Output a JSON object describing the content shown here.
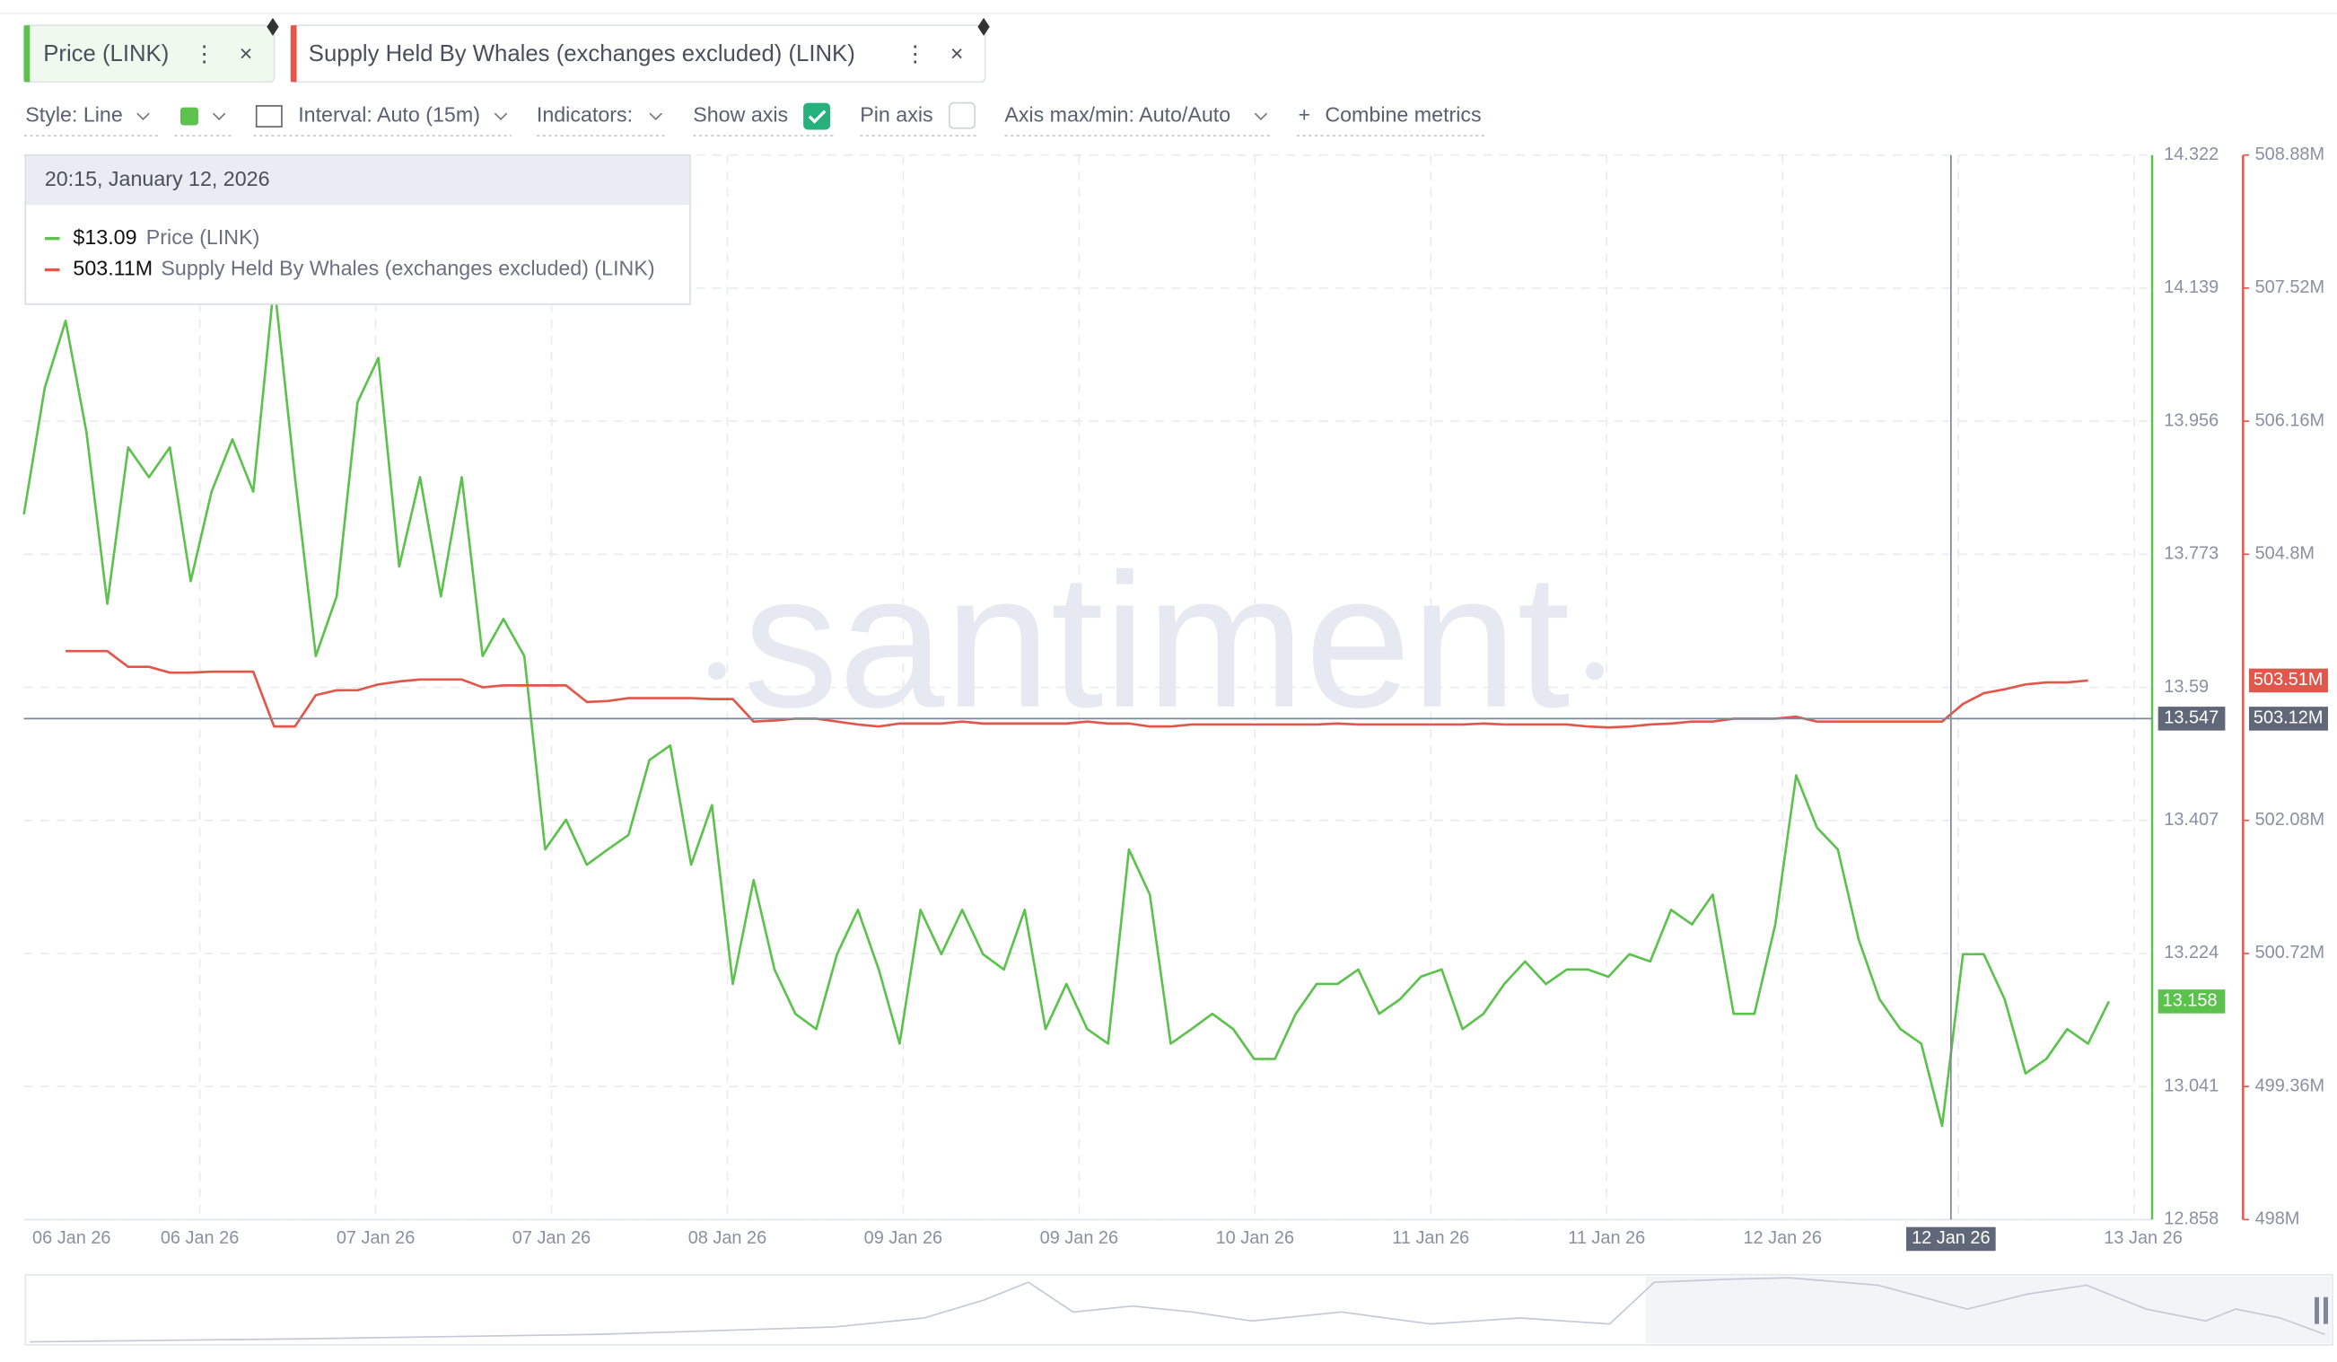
{
  "tabs_note_free": null,
  "toolbar": {
    "style": "Style: Line",
    "interval": "Interval: Auto (15m)",
    "indicators": "Indicators:",
    "show_axis": "Show axis",
    "pin_axis": "Pin axis",
    "axis_range": "Axis max/min: Auto/Auto",
    "combine": "Combine metrics"
  },
  "tooltip": {
    "time": "20:15, January 12, 2026",
    "values": [
      "$13.09",
      "503.11M"
    ]
  },
  "chart_data": {
    "type": "line",
    "watermark": "santiment",
    "grid": true,
    "xtick_labels": [
      "06 Jan 26",
      "06 Jan 26",
      "07 Jan 26",
      "07 Jan 26",
      "08 Jan 26",
      "09 Jan 26",
      "09 Jan 26",
      "10 Jan 26",
      "11 Jan 26",
      "11 Jan 26",
      "12 Jan 26",
      "13 Jan 26"
    ],
    "crosshair_x_label": "12 Jan 26",
    "crosshair_y": {
      "value": 13.547,
      "label": "13.547"
    },
    "crosshair_y2": {
      "value": 503.12,
      "label": "503.12M"
    },
    "ylim": [
      12.858,
      14.322
    ],
    "yticks": [
      12.858,
      13.041,
      13.224,
      13.407,
      13.59,
      13.773,
      13.956,
      14.139,
      14.322
    ],
    "y2lim": [
      498,
      508.88
    ],
    "y2ticks": [
      {
        "value": 498,
        "label": "498M"
      },
      {
        "value": 499.36,
        "label": "499.36M"
      },
      {
        "value": 500.72,
        "label": "500.72M"
      },
      {
        "value": 502.08,
        "label": "502.08M"
      },
      {
        "value": 504.8,
        "label": "504.8M"
      },
      {
        "value": 506.16,
        "label": "506.16M"
      },
      {
        "value": 507.52,
        "label": "507.52M"
      },
      {
        "value": 508.88,
        "label": "508.88M"
      }
    ],
    "series": [
      {
        "name": "Price (LINK)",
        "color": "#5cc24d",
        "last_label": "13.158",
        "values": [
          13.828,
          14.002,
          14.094,
          13.941,
          13.705,
          13.92,
          13.879,
          13.92,
          13.736,
          13.859,
          13.931,
          13.859,
          14.146,
          13.879,
          13.633,
          13.715,
          13.982,
          14.043,
          13.756,
          13.879,
          13.715,
          13.879,
          13.633,
          13.684,
          13.633,
          13.367,
          13.408,
          13.346,
          13.367,
          13.387,
          13.49,
          13.51,
          13.346,
          13.428,
          13.182,
          13.325,
          13.202,
          13.141,
          13.12,
          13.223,
          13.284,
          13.202,
          13.1,
          13.284,
          13.223,
          13.284,
          13.223,
          13.202,
          13.284,
          13.12,
          13.182,
          13.12,
          13.1,
          13.367,
          13.305,
          13.1,
          13.12,
          13.141,
          13.12,
          13.079,
          13.079,
          13.141,
          13.182,
          13.182,
          13.202,
          13.141,
          13.161,
          13.192,
          13.202,
          13.12,
          13.141,
          13.182,
          13.213,
          13.182,
          13.202,
          13.202,
          13.192,
          13.223,
          13.213,
          13.284,
          13.264,
          13.305,
          13.141,
          13.141,
          13.264,
          13.469,
          13.397,
          13.367,
          13.243,
          13.161,
          13.12,
          13.1,
          12.987,
          13.223,
          13.223,
          13.161,
          13.059,
          13.079,
          13.12,
          13.1,
          13.158
        ]
      },
      {
        "name": "Supply Held By Whales (exchanges excluded) (LINK)",
        "color": "#e2574c",
        "axis": "y2",
        "last_label": "503.51M",
        "values": [
          null,
          null,
          503.81,
          503.81,
          503.81,
          503.65,
          503.65,
          503.59,
          503.59,
          503.6,
          503.6,
          503.6,
          503.04,
          503.04,
          503.36,
          503.41,
          503.41,
          503.47,
          503.5,
          503.52,
          503.52,
          503.52,
          503.44,
          503.46,
          503.46,
          503.46,
          503.46,
          503.29,
          503.3,
          503.33,
          503.33,
          503.33,
          503.33,
          503.32,
          503.32,
          503.09,
          503.1,
          503.12,
          503.12,
          503.09,
          503.06,
          503.04,
          503.07,
          503.07,
          503.07,
          503.09,
          503.07,
          503.07,
          503.07,
          503.07,
          503.07,
          503.09,
          503.07,
          503.07,
          503.04,
          503.04,
          503.06,
          503.06,
          503.06,
          503.06,
          503.06,
          503.06,
          503.06,
          503.07,
          503.06,
          503.06,
          503.06,
          503.06,
          503.06,
          503.06,
          503.07,
          503.06,
          503.06,
          503.06,
          503.06,
          503.04,
          503.03,
          503.04,
          503.06,
          503.07,
          503.09,
          503.09,
          503.12,
          503.12,
          503.12,
          503.14,
          503.09,
          503.09,
          503.09,
          503.09,
          503.09,
          503.09,
          503.09,
          503.27,
          503.38,
          503.42,
          503.47,
          503.49,
          503.49,
          503.51,
          null
        ]
      }
    ]
  }
}
